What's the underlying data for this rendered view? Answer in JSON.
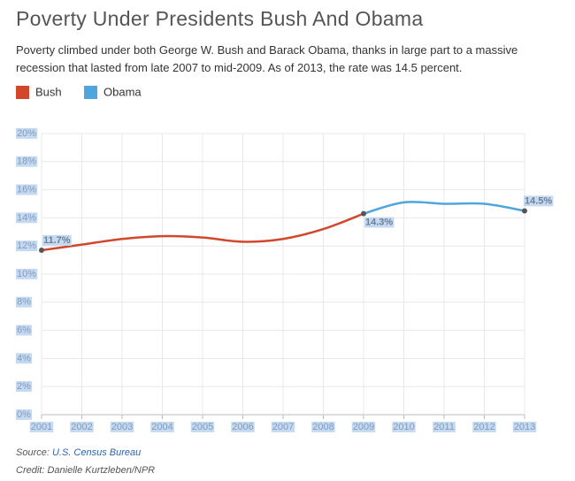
{
  "chart_data": {
    "type": "line",
    "title": "Poverty Under Presidents Bush And Obama",
    "subtitle": "Poverty climbed under both George W. Bush and Barack Obama, thanks in large part to a massive recession that lasted from late 2007 to mid-2009. As of 2013, the rate was 14.5 percent.",
    "x": [
      2001,
      2002,
      2003,
      2004,
      2005,
      2006,
      2007,
      2008,
      2009,
      2010,
      2011,
      2012,
      2013
    ],
    "series": [
      {
        "name": "Bush",
        "color": "#d2472b",
        "values": [
          11.7,
          12.1,
          12.5,
          12.7,
          12.6,
          12.3,
          12.5,
          13.2,
          14.3,
          null,
          null,
          null,
          null
        ],
        "value_labels": [
          "11.7%",
          null,
          null,
          null,
          null,
          null,
          null,
          null,
          "14.3%",
          null,
          null,
          null,
          null
        ]
      },
      {
        "name": "Obama",
        "color": "#4ea6dc",
        "values": [
          null,
          null,
          null,
          null,
          null,
          null,
          null,
          null,
          14.3,
          15.1,
          15.0,
          15.0,
          14.5
        ],
        "value_labels": [
          null,
          null,
          null,
          null,
          null,
          null,
          null,
          null,
          null,
          null,
          null,
          null,
          "14.5%"
        ]
      }
    ],
    "xlim": [
      2001,
      2013
    ],
    "xticks": [
      2001,
      2002,
      2003,
      2004,
      2005,
      2006,
      2007,
      2008,
      2009,
      2010,
      2011,
      2012,
      2013
    ],
    "ylim": [
      0,
      20
    ],
    "yticks": [
      {
        "value": 0,
        "label": "0%"
      },
      {
        "value": 2,
        "label": "2%"
      },
      {
        "value": 4,
        "label": "4%"
      },
      {
        "value": 6,
        "label": "6%"
      },
      {
        "value": 8,
        "label": "8%"
      },
      {
        "value": 10,
        "label": "10%"
      },
      {
        "value": 12,
        "label": "12%"
      },
      {
        "value": 14,
        "label": "14%"
      },
      {
        "value": 16,
        "label": "16%"
      },
      {
        "value": 18,
        "label": "18%"
      },
      {
        "value": 20,
        "label": "20%"
      }
    ],
    "grid": true,
    "source_label": "Source:",
    "source": "U.S. Census Bureau",
    "credit": "Credit: Danielle Kurtzleben/NPR"
  }
}
